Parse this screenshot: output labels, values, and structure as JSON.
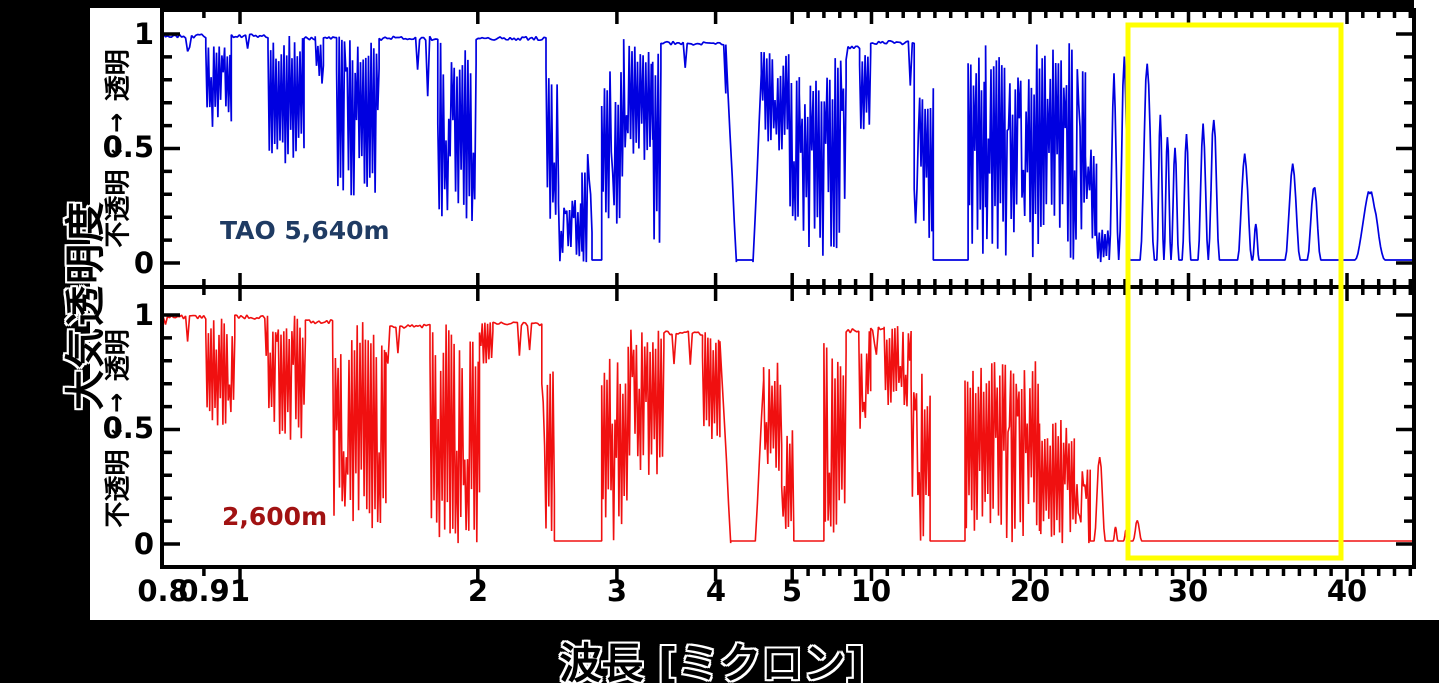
{
  "figure": {
    "background": "#000000",
    "plot_background": "#FFFFFF",
    "frame_color": "#000000"
  },
  "xaxis": {
    "label": "波長 [ミクロン]",
    "scale": "log 0.8-5 microns, linear 5-44 microns",
    "labels": [
      {
        "v": 0.8,
        "t": "0.8"
      },
      {
        "v": 0.9,
        "t": "0.9"
      },
      {
        "v": 1,
        "t": "1"
      },
      {
        "v": 2,
        "t": "2"
      },
      {
        "v": 3,
        "t": "3"
      },
      {
        "v": 4,
        "t": "4"
      },
      {
        "v": 5,
        "t": "5"
      },
      {
        "v": 10,
        "t": "10"
      },
      {
        "v": 20,
        "t": "20"
      },
      {
        "v": 30,
        "t": "30"
      },
      {
        "v": 40,
        "t": "40"
      }
    ],
    "long_ticks": [
      1,
      2,
      3,
      4,
      5,
      10,
      20,
      30,
      40
    ],
    "short_ticks": [
      0.9,
      6,
      7,
      8,
      9,
      11,
      12,
      13,
      14,
      15,
      16,
      17,
      18,
      19,
      21,
      22,
      23,
      24,
      25,
      26,
      27,
      28,
      29,
      31,
      32,
      33,
      34,
      35,
      36,
      37,
      38,
      39,
      41,
      42,
      43,
      44
    ]
  },
  "yaxis": {
    "label_outer": "大気透明度",
    "inner_top": "透明",
    "inner_bottom": "不透明",
    "arrows": {
      "up": "↑",
      "down": "↓"
    },
    "ticks": [
      {
        "v": 1,
        "label": "1"
      },
      {
        "v": 0.5,
        "label": "0.5"
      },
      {
        "v": 0,
        "label": "0"
      }
    ],
    "short_ticks": [
      0.1,
      0.2,
      0.3,
      0.4,
      0.6,
      0.7,
      0.8,
      0.9
    ]
  },
  "panels": [
    {
      "name": "top",
      "annotation": "TAO  5,640m",
      "annotation_color": "#1F3B63",
      "line_color": "#0000E0"
    },
    {
      "name": "bottom",
      "annotation": "2,600m",
      "annotation_color": "#A11212",
      "line_color": "#F01010"
    }
  ],
  "highlight_box": {
    "color": "#FFFF00",
    "x_range_microns": [
      26,
      40
    ],
    "note": "yellow box over 26-40 micron region of both panels"
  },
  "chart_data": {
    "type": "line",
    "xlabel": "波長 [ミクロン]",
    "ylabel": "大気透明度",
    "x_unit": "micron",
    "xlim": [
      0.8,
      44.2
    ],
    "ylim": [
      0,
      1
    ],
    "grid": false,
    "legend_position": "in-panel annotations",
    "series_note": "segments give atmospheric transmission envelope: t=flat(level v), s=spiky comb between lo/hi, ramp v0->v1, zero, peak(bell height h); a,b = wavelength range in microns",
    "series": [
      {
        "name": "TAO 5,640m",
        "color": "#0000E0",
        "panel": "top",
        "segments": [
          {
            "t": "flat",
            "a": 0.8,
            "b": 0.905,
            "v": 1.0
          },
          {
            "t": "spiky",
            "a": 0.905,
            "b": 0.975,
            "lo": 0.55,
            "hi": 1.0
          },
          {
            "t": "flat",
            "a": 0.975,
            "b": 1.085,
            "v": 1.0
          },
          {
            "t": "spiky",
            "a": 1.085,
            "b": 1.205,
            "lo": 0.42,
            "hi": 1.0
          },
          {
            "t": "flat",
            "a": 1.205,
            "b": 1.245,
            "v": 0.99
          },
          {
            "t": "spiky",
            "a": 1.245,
            "b": 1.275,
            "lo": 0.78,
            "hi": 0.99
          },
          {
            "t": "flat",
            "a": 1.275,
            "b": 1.325,
            "v": 0.99
          },
          {
            "t": "spiky",
            "a": 1.325,
            "b": 1.5,
            "lo": 0.28,
            "hi": 1.0
          },
          {
            "t": "flat",
            "a": 1.5,
            "b": 1.78,
            "v": 0.99
          },
          {
            "t": "spiky",
            "a": 1.78,
            "b": 1.99,
            "lo": 0.18,
            "hi": 0.99
          },
          {
            "t": "flat",
            "a": 1.99,
            "b": 2.44,
            "v": 0.99
          },
          {
            "t": "spiky",
            "a": 2.44,
            "b": 2.53,
            "lo": 0.15,
            "hi": 0.92
          },
          {
            "t": "spiky",
            "a": 2.53,
            "b": 2.71,
            "lo": 0.0,
            "hi": 0.28
          },
          {
            "t": "spiky",
            "a": 2.71,
            "b": 2.79,
            "lo": 0.0,
            "hi": 0.5
          },
          {
            "t": "zero",
            "a": 2.79,
            "b": 2.87
          },
          {
            "t": "spiky",
            "a": 2.87,
            "b": 3.06,
            "lo": 0.0,
            "hi": 0.85
          },
          {
            "t": "spiky",
            "a": 3.06,
            "b": 3.33,
            "lo": 0.45,
            "hi": 0.98
          },
          {
            "t": "spiky",
            "a": 3.33,
            "b": 3.41,
            "lo": 0.08,
            "hi": 0.95
          },
          {
            "t": "flat",
            "a": 3.41,
            "b": 4.12,
            "v": 0.97
          },
          {
            "t": "ramp",
            "a": 4.12,
            "b": 4.25,
            "v0": 0.95,
            "v1": 0.0
          },
          {
            "t": "zero",
            "a": 4.25,
            "b": 4.46
          },
          {
            "t": "ramp",
            "a": 4.46,
            "b": 4.57,
            "v0": 0.0,
            "v1": 0.82
          },
          {
            "t": "spiky",
            "a": 4.57,
            "b": 4.95,
            "lo": 0.45,
            "hi": 0.95
          },
          {
            "t": "spiky",
            "a": 4.95,
            "b": 5.45,
            "lo": 0.0,
            "hi": 0.9
          },
          {
            "t": "spiky",
            "a": 5.45,
            "b": 6.15,
            "lo": 0.0,
            "hi": 0.8
          },
          {
            "t": "spiky",
            "a": 6.15,
            "b": 7.2,
            "lo": 0.0,
            "hi": 0.9
          },
          {
            "t": "spiky",
            "a": 7.2,
            "b": 8.4,
            "lo": 0.05,
            "hi": 0.93
          },
          {
            "t": "flat",
            "a": 8.4,
            "b": 9.25,
            "v": 0.95
          },
          {
            "t": "spiky",
            "a": 9.25,
            "b": 9.95,
            "lo": 0.55,
            "hi": 0.95
          },
          {
            "t": "flat",
            "a": 9.95,
            "b": 12.7,
            "v": 0.97
          },
          {
            "t": "spiky",
            "a": 12.7,
            "b": 13.9,
            "lo": 0.0,
            "hi": 0.8
          },
          {
            "t": "zero",
            "a": 13.9,
            "b": 16.1
          },
          {
            "t": "spiky",
            "a": 16.1,
            "b": 17.2,
            "lo": 0.0,
            "hi": 0.9
          },
          {
            "t": "spiky",
            "a": 17.2,
            "b": 23.5,
            "lo": 0.0,
            "hi": 0.96
          },
          {
            "t": "spiky",
            "a": 23.5,
            "b": 24.2,
            "lo": 0.0,
            "hi": 0.5
          },
          {
            "t": "spiky",
            "a": 24.2,
            "b": 25.0,
            "lo": 0.0,
            "hi": 0.15
          },
          {
            "t": "peak",
            "a": 25.0,
            "b": 25.6,
            "h": 0.8
          },
          {
            "t": "peak",
            "a": 25.6,
            "b": 26.3,
            "h": 0.87
          },
          {
            "t": "peak",
            "a": 26.95,
            "b": 27.85,
            "h": 0.86
          },
          {
            "t": "peak",
            "a": 28.0,
            "b": 28.45,
            "h": 0.63
          },
          {
            "t": "peak",
            "a": 28.45,
            "b": 28.9,
            "h": 0.55
          },
          {
            "t": "peak",
            "a": 28.9,
            "b": 29.4,
            "h": 0.48
          },
          {
            "t": "peak",
            "a": 29.6,
            "b": 30.15,
            "h": 0.56
          },
          {
            "t": "peak",
            "a": 30.6,
            "b": 31.25,
            "h": 0.59
          },
          {
            "t": "peak",
            "a": 31.25,
            "b": 31.95,
            "h": 0.63
          },
          {
            "t": "peak",
            "a": 33.1,
            "b": 34.0,
            "h": 0.46
          },
          {
            "t": "peak",
            "a": 34.05,
            "b": 34.45,
            "h": 0.16
          },
          {
            "t": "peak",
            "a": 36.1,
            "b": 37.05,
            "h": 0.41
          },
          {
            "t": "peak",
            "a": 37.5,
            "b": 38.35,
            "h": 0.33
          },
          {
            "t": "peak",
            "a": 40.5,
            "b": 42.4,
            "h": 0.3
          },
          {
            "t": "zero",
            "a": 42.4,
            "b": 44.2
          }
        ]
      },
      {
        "name": "2,600m",
        "color": "#F01010",
        "panel": "bottom",
        "segments": [
          {
            "t": "flat",
            "a": 0.8,
            "b": 0.905,
            "v": 1.0
          },
          {
            "t": "spiky",
            "a": 0.905,
            "b": 0.985,
            "lo": 0.5,
            "hi": 1.0
          },
          {
            "t": "flat",
            "a": 0.985,
            "b": 1.075,
            "v": 1.0
          },
          {
            "t": "spiky",
            "a": 1.075,
            "b": 1.21,
            "lo": 0.45,
            "hi": 1.0
          },
          {
            "t": "flat",
            "a": 1.21,
            "b": 1.31,
            "v": 0.98
          },
          {
            "t": "spiky",
            "a": 1.31,
            "b": 1.53,
            "lo": 0.05,
            "hi": 0.98
          },
          {
            "t": "flat",
            "a": 1.53,
            "b": 1.74,
            "v": 0.96
          },
          {
            "t": "spiky",
            "a": 1.74,
            "b": 2.01,
            "lo": 0.0,
            "hi": 0.96
          },
          {
            "t": "spiky",
            "a": 2.01,
            "b": 2.09,
            "lo": 0.75,
            "hi": 0.97
          },
          {
            "t": "flat",
            "a": 2.09,
            "b": 2.41,
            "v": 0.97
          },
          {
            "t": "spiky",
            "a": 2.41,
            "b": 2.5,
            "lo": 0.0,
            "hi": 0.85
          },
          {
            "t": "zero",
            "a": 2.5,
            "b": 2.87
          },
          {
            "t": "spiky",
            "a": 2.87,
            "b": 3.1,
            "lo": 0.0,
            "hi": 0.82
          },
          {
            "t": "spiky",
            "a": 3.1,
            "b": 3.44,
            "lo": 0.3,
            "hi": 0.95
          },
          {
            "t": "flat",
            "a": 3.44,
            "b": 3.85,
            "v": 0.93
          },
          {
            "t": "spiky",
            "a": 3.85,
            "b": 4.05,
            "lo": 0.45,
            "hi": 0.93
          },
          {
            "t": "ramp",
            "a": 4.05,
            "b": 4.18,
            "v0": 0.9,
            "v1": 0.0
          },
          {
            "t": "zero",
            "a": 4.18,
            "b": 4.49
          },
          {
            "t": "ramp",
            "a": 4.49,
            "b": 4.6,
            "v0": 0.0,
            "v1": 0.72
          },
          {
            "t": "spiky",
            "a": 4.6,
            "b": 4.85,
            "lo": 0.3,
            "hi": 0.8
          },
          {
            "t": "spiky",
            "a": 4.85,
            "b": 5.1,
            "lo": 0.0,
            "hi": 0.55
          },
          {
            "t": "zero",
            "a": 5.1,
            "b": 7.0
          },
          {
            "t": "spiky",
            "a": 7.0,
            "b": 8.4,
            "lo": 0.0,
            "hi": 0.88
          },
          {
            "t": "flat",
            "a": 8.4,
            "b": 9.2,
            "v": 0.94
          },
          {
            "t": "spiky",
            "a": 9.2,
            "b": 9.95,
            "lo": 0.45,
            "hi": 0.93
          },
          {
            "t": "flat",
            "a": 9.95,
            "b": 10.8,
            "v": 0.95
          },
          {
            "t": "spiky",
            "a": 10.8,
            "b": 12.5,
            "lo": 0.6,
            "hi": 0.96
          },
          {
            "t": "spiky",
            "a": 12.5,
            "b": 13.7,
            "lo": 0.0,
            "hi": 0.75
          },
          {
            "t": "zero",
            "a": 13.7,
            "b": 15.9
          },
          {
            "t": "spiky",
            "a": 15.9,
            "b": 18.1,
            "lo": 0.0,
            "hi": 0.8
          },
          {
            "t": "spiky",
            "a": 18.1,
            "b": 20.6,
            "lo": 0.0,
            "hi": 0.8
          },
          {
            "t": "spiky",
            "a": 20.6,
            "b": 22.8,
            "lo": 0.0,
            "hi": 0.55
          },
          {
            "t": "spiky",
            "a": 22.8,
            "b": 23.8,
            "lo": 0.0,
            "hi": 0.33
          },
          {
            "t": "peak",
            "a": 24.05,
            "b": 24.75,
            "h": 0.38
          },
          {
            "t": "peak",
            "a": 25.25,
            "b": 25.55,
            "h": 0.06
          },
          {
            "t": "peak",
            "a": 25.9,
            "b": 26.25,
            "h": 0.05
          },
          {
            "t": "peak",
            "a": 26.5,
            "b": 27.05,
            "h": 0.09
          },
          {
            "t": "zero",
            "a": 27.2,
            "b": 44.2
          }
        ]
      }
    ]
  }
}
